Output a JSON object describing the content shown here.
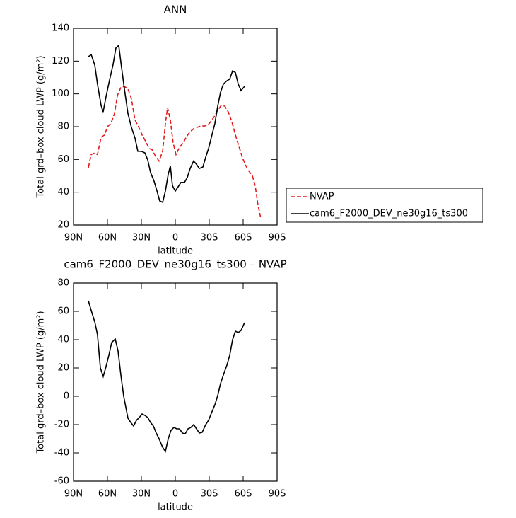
{
  "chart_data": [
    {
      "type": "line",
      "title": "ANN",
      "xlabel": "latitude",
      "ylabel": "Total grd–box cloud LWP (g/m²)",
      "xlim": [
        90,
        -90
      ],
      "xticks": [
        {
          "value": 90,
          "label": "90N"
        },
        {
          "value": 60,
          "label": "60N"
        },
        {
          "value": 30,
          "label": "30N"
        },
        0,
        {
          "value": -30,
          "label": "30S"
        },
        {
          "value": -60,
          "label": "60S"
        },
        {
          "value": -90,
          "label": "90S"
        }
      ],
      "ylim": [
        20,
        140
      ],
      "yticks": [
        20,
        40,
        60,
        80,
        100,
        120,
        140
      ],
      "legend": true,
      "legend_position": "right",
      "series": [
        {
          "name": "NVAP",
          "color": "#e31a1c",
          "line_style": "dashed",
          "x": [
            76.9,
            74.4,
            71.2,
            68.8,
            65.6,
            62.5,
            60,
            56.9,
            53.8,
            51.2,
            48.1,
            45,
            41.9,
            38.8,
            35.6,
            32.5,
            29.4,
            26.2,
            23.1,
            20.6,
            17.5,
            14.4,
            11.2,
            8.75,
            6.9,
            4.4,
            1.9,
            -0.6,
            -3.75,
            -6.9,
            -10,
            -13.1,
            -16.2,
            -19.4,
            -22.5,
            -25.6,
            -28.75,
            -31.25,
            -34.4,
            -37.5,
            -40.6,
            -43.75,
            -46.9,
            -50,
            -53.1,
            -56.25,
            -59.4,
            -62.5,
            -65,
            -68.1,
            -70.6,
            -73.1,
            -75.6
          ],
          "values": [
            55,
            63,
            64,
            63,
            73.5,
            75,
            80,
            82,
            88,
            99,
            104,
            104.5,
            103,
            97,
            84,
            80,
            75,
            71,
            66.6,
            66,
            62,
            59,
            65,
            82,
            91.6,
            84,
            70,
            63,
            67.5,
            70,
            74,
            77,
            78.7,
            79.6,
            80.4,
            80.4,
            81,
            83,
            86,
            90,
            93,
            92.5,
            89,
            83,
            75,
            68,
            61,
            56,
            53,
            50,
            44,
            32,
            24
          ]
        },
        {
          "name": "cam6_F2000_DEV_ne30g16_ts300",
          "color": "#000000",
          "line_style": "solid",
          "x": [
            76.9,
            74.4,
            71.2,
            68.8,
            65.6,
            63.8,
            61.2,
            58.1,
            55,
            52.5,
            50,
            47.5,
            45,
            41.9,
            38.8,
            35.6,
            33.1,
            30,
            26.9,
            24.4,
            21.9,
            18.8,
            16.2,
            13.8,
            11.2,
            8.75,
            6.25,
            4.4,
            2.5,
            0,
            -2.5,
            -5,
            -8.1,
            -10.6,
            -13.1,
            -16.2,
            -18.75,
            -21.25,
            -24.4,
            -26.9,
            -29.4,
            -31.9,
            -35,
            -37.5,
            -40,
            -42.5,
            -45.6,
            -48.1,
            -50.6,
            -53.1,
            -55.6,
            -58.1,
            -61.25
          ],
          "values": [
            122.7,
            124,
            117.5,
            106,
            93,
            89,
            98.5,
            108.5,
            118,
            128,
            129.6,
            116,
            103,
            88,
            79.6,
            73,
            65,
            65,
            64,
            59.7,
            52,
            46.8,
            40.7,
            34.7,
            33.8,
            40.7,
            51,
            56,
            44,
            40.7,
            43.3,
            46,
            46,
            49,
            54.5,
            59,
            57,
            54.5,
            55.4,
            61.4,
            66.6,
            73.5,
            82,
            92.5,
            101,
            106,
            108,
            109,
            114,
            113,
            106,
            102,
            104.6
          ]
        }
      ]
    },
    {
      "type": "line",
      "title": "cam6_F2000_DEV_ne30g16_ts300 – NVAP",
      "xlabel": "latitude",
      "ylabel": "Total grd–box cloud LWP (g/m²)",
      "xlim": [
        90,
        -90
      ],
      "xticks": [
        {
          "value": 90,
          "label": "90N"
        },
        {
          "value": 60,
          "label": "60N"
        },
        {
          "value": 30,
          "label": "30N"
        },
        0,
        {
          "value": -30,
          "label": "30S"
        },
        {
          "value": -60,
          "label": "60S"
        },
        {
          "value": -90,
          "label": "90S"
        }
      ],
      "ylim": [
        -60,
        80
      ],
      "yticks": [
        -60,
        -40,
        -20,
        0,
        20,
        40,
        60,
        80
      ],
      "legend": false,
      "series": [
        {
          "color": "#000000",
          "line_style": "solid",
          "x": [
            76.9,
            73.75,
            71.2,
            68.8,
            66.25,
            63.75,
            61.25,
            58.75,
            56.25,
            53.1,
            50.6,
            48.1,
            45.6,
            41.9,
            39.4,
            36.9,
            34.4,
            31.9,
            29.4,
            26.9,
            24.4,
            21.9,
            19.4,
            16.9,
            14.4,
            11.25,
            8.75,
            6.25,
            3.75,
            1.25,
            -1.25,
            -3.75,
            -6.25,
            -8.75,
            -11.25,
            -13.75,
            -16.25,
            -18.75,
            -21.25,
            -23.75,
            -26.9,
            -29.4,
            -31.9,
            -35,
            -37.5,
            -40,
            -43.1,
            -45.6,
            -48.1,
            -50.6,
            -53.1,
            -55.6,
            -58.1,
            -61.25
          ],
          "values": [
            67.5,
            59,
            52.5,
            43.5,
            20,
            14,
            21,
            29,
            38,
            40.5,
            32,
            15,
            0,
            -15.5,
            -18.5,
            -21,
            -17,
            -15,
            -12.5,
            -13.5,
            -15,
            -18.5,
            -21,
            -26,
            -30,
            -36,
            -39,
            -30,
            -24,
            -22,
            -23,
            -23,
            -26,
            -26.5,
            -23,
            -22,
            -20,
            -23,
            -26,
            -25.5,
            -20,
            -17,
            -12,
            -6,
            0.5,
            9,
            16.5,
            22,
            29,
            40,
            46,
            45,
            46.5,
            52
          ]
        }
      ]
    }
  ]
}
